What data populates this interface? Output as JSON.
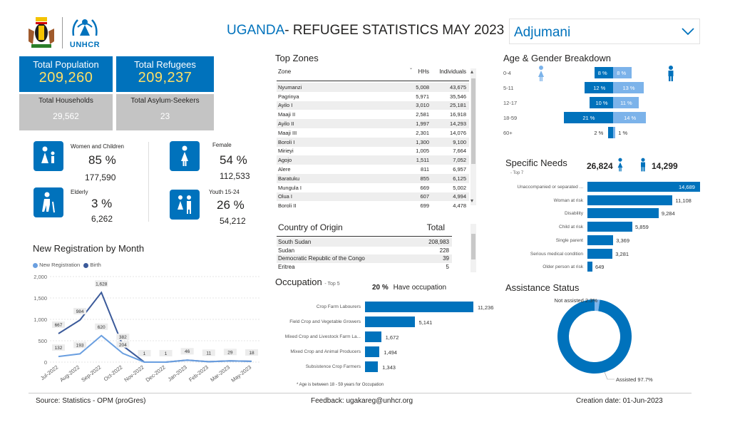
{
  "header": {
    "logo_text": "UNHCR",
    "title_main": "UGANDA",
    "title_rest": "- REFUGEE STATISTICS MAY 2023",
    "location_select": "Adjumani"
  },
  "cards": {
    "total_population": {
      "label": "Total Population",
      "value": "209,260"
    },
    "total_refugees": {
      "label": "Total Refugees",
      "value": "209,237"
    },
    "total_households": {
      "label": "Total Households",
      "value": "29,562"
    },
    "total_asylum": {
      "label": "Total Asylum-Seekers",
      "value": "23"
    }
  },
  "demographics": {
    "women_children": {
      "label": "Women and Children",
      "pct": "85 %",
      "count": "177,590"
    },
    "elderly": {
      "label": "Elderly",
      "pct": "3 %",
      "count": "6,262"
    },
    "female": {
      "label": "Female",
      "pct": "54 %",
      "count": "112,533"
    },
    "youth": {
      "label": "Youth 15-24",
      "pct": "26 %",
      "count": "54,212"
    }
  },
  "top_zones": {
    "title": "Top Zones",
    "headers": [
      "Zone",
      "HHs",
      "Individuals"
    ],
    "rows": [
      [
        "Nyumanzi",
        "5,008",
        "43,675"
      ],
      [
        "Pagrinya",
        "5,971",
        "35,546"
      ],
      [
        "Ayilo I",
        "3,010",
        "25,181"
      ],
      [
        "Maaji II",
        "2,581",
        "16,918"
      ],
      [
        "Ayilo II",
        "1,997",
        "14,293"
      ],
      [
        "Maaji III",
        "2,301",
        "14,076"
      ],
      [
        "Boroli I",
        "1,300",
        "9,100"
      ],
      [
        "Mirieyi",
        "1,005",
        "7,664"
      ],
      [
        "Agojo",
        "1,511",
        "7,052"
      ],
      [
        "Alere",
        "811",
        "6,957"
      ],
      [
        "Baratuku",
        "855",
        "6,125"
      ],
      [
        "Mungula I",
        "669",
        "5,002"
      ],
      [
        "Olua I",
        "607",
        "4,994"
      ],
      [
        "Boroli II",
        "699",
        "4,478"
      ]
    ]
  },
  "country_origin": {
    "headers": [
      "Country of Origin",
      "Total"
    ],
    "rows": [
      [
        "South Sudan",
        "208,983"
      ],
      [
        "Sudan",
        "228"
      ],
      [
        "Democratic Republic of the Congo",
        "39"
      ],
      [
        "Eritrea",
        "5"
      ]
    ]
  },
  "occupation": {
    "title": "Occupation",
    "subtitle": "- Top 5",
    "have_pct": "20 %",
    "have_label": "Have occupation",
    "note": "* Age is between 18 - 59 years for Occupation",
    "items": [
      {
        "label": "Crop Farm Labourers",
        "value": 11236,
        "text": "11,236"
      },
      {
        "label": "Field Crop and Vegetable Growers",
        "value": 5141,
        "text": "5,141"
      },
      {
        "label": "Mixed Crop and Livestock Farm La...",
        "value": 1672,
        "text": "1,672"
      },
      {
        "label": "Mixed Crop and Animal Producers",
        "value": 1494,
        "text": "1,494"
      },
      {
        "label": "Subsistence Crop Farmers",
        "value": 1343,
        "text": "1,343"
      }
    ]
  },
  "age_gender": {
    "title": "Age & Gender Breakdown",
    "rows": [
      {
        "group": "0-4",
        "male": 8,
        "female": 8,
        "male_text": "8 %",
        "female_text": "8 %"
      },
      {
        "group": "5-11",
        "male": 12,
        "female": 13,
        "male_text": "12 %",
        "female_text": "13 %"
      },
      {
        "group": "12-17",
        "male": 10,
        "female": 11,
        "male_text": "10 %",
        "female_text": "11 %"
      },
      {
        "group": "18-59",
        "male": 21,
        "female": 14,
        "male_text": "21 %",
        "female_text": "14 %"
      },
      {
        "group": "60+",
        "male": 2,
        "female": 1,
        "male_text": "2 %",
        "female_text": "1 %"
      }
    ],
    "colors": {
      "male": "#0072BC",
      "female": "#7CB3EA"
    }
  },
  "specific_needs": {
    "title": "Specific Needs",
    "subtitle": "- Top 7",
    "female_count": "26,824",
    "male_count": "14,299",
    "items": [
      {
        "label": "Unaccompanied or separated ...",
        "value": 14689,
        "text": "14,689"
      },
      {
        "label": "Woman at risk",
        "value": 11108,
        "text": "11,108"
      },
      {
        "label": "Disability",
        "value": 9284,
        "text": "9,284"
      },
      {
        "label": "Child at risk",
        "value": 5859,
        "text": "5,859"
      },
      {
        "label": "Single parent",
        "value": 3369,
        "text": "3,369"
      },
      {
        "label": "Serious medical condition",
        "value": 3281,
        "text": "3,281"
      },
      {
        "label": "Older person at risk",
        "value": 649,
        "text": "649"
      }
    ]
  },
  "assistance": {
    "title": "Assistance Status",
    "not_assisted_label": "Not assisted 2.3%",
    "assisted_label": "Assisted 97.7%",
    "assisted": 97.7,
    "not_assisted": 2.3,
    "colors": {
      "assisted": "#0072BC",
      "not_assisted": "#7CB3EA"
    }
  },
  "chart_data": {
    "type": "line",
    "title": "New Registration by Month",
    "categories": [
      "Jul-2022",
      "Aug-2022",
      "Sep-2022",
      "Oct-2022",
      "Nov-2022",
      "Dec-2022",
      "Jan-2023",
      "Feb-2023",
      "Mar-2023",
      "May-2023"
    ],
    "series": [
      {
        "name": "New Registration",
        "values": [
          132,
          193,
          620,
          204,
          1,
          1,
          46,
          11,
          29,
          18
        ],
        "color": "#6A9FE0"
      },
      {
        "name": "Birth",
        "values": [
          667,
          984,
          1628,
          382,
          1,
          1,
          46,
          11,
          29,
          18
        ],
        "color": "#3B5A9A"
      }
    ],
    "labels": [
      {
        "idx": 0,
        "text": "667",
        "val": 667
      },
      {
        "idx": 0,
        "text": "132",
        "val": 132
      },
      {
        "idx": 1,
        "text": "984",
        "val": 984
      },
      {
        "idx": 1,
        "text": "193",
        "val": 193
      },
      {
        "idx": 2,
        "text": "1,628",
        "val": 1628
      },
      {
        "idx": 2,
        "text": "620",
        "val": 620
      },
      {
        "idx": 3,
        "text": "382",
        "val": 382
      },
      {
        "idx": 3,
        "text": "204",
        "val": 204
      },
      {
        "idx": 4,
        "text": "1",
        "val": 1
      },
      {
        "idx": 5,
        "text": "1",
        "val": 1
      },
      {
        "idx": 6,
        "text": "46",
        "val": 46
      },
      {
        "idx": 7,
        "text": "11",
        "val": 11
      },
      {
        "idx": 8,
        "text": "29",
        "val": 29
      },
      {
        "idx": 9,
        "text": "18",
        "val": 18
      }
    ],
    "yticks": [
      0,
      500,
      1000,
      1500,
      2000
    ],
    "ytick_labels": [
      "0",
      "500",
      "1,000",
      "1,500",
      "2,000"
    ],
    "ylim": [
      0,
      2000
    ]
  },
  "footer": {
    "source": "Source: Statistics - OPM (proGres)",
    "feedback": "Feedback: ugakareg@unhcr.org",
    "created": "Creation date: 01-Jun-2023"
  }
}
